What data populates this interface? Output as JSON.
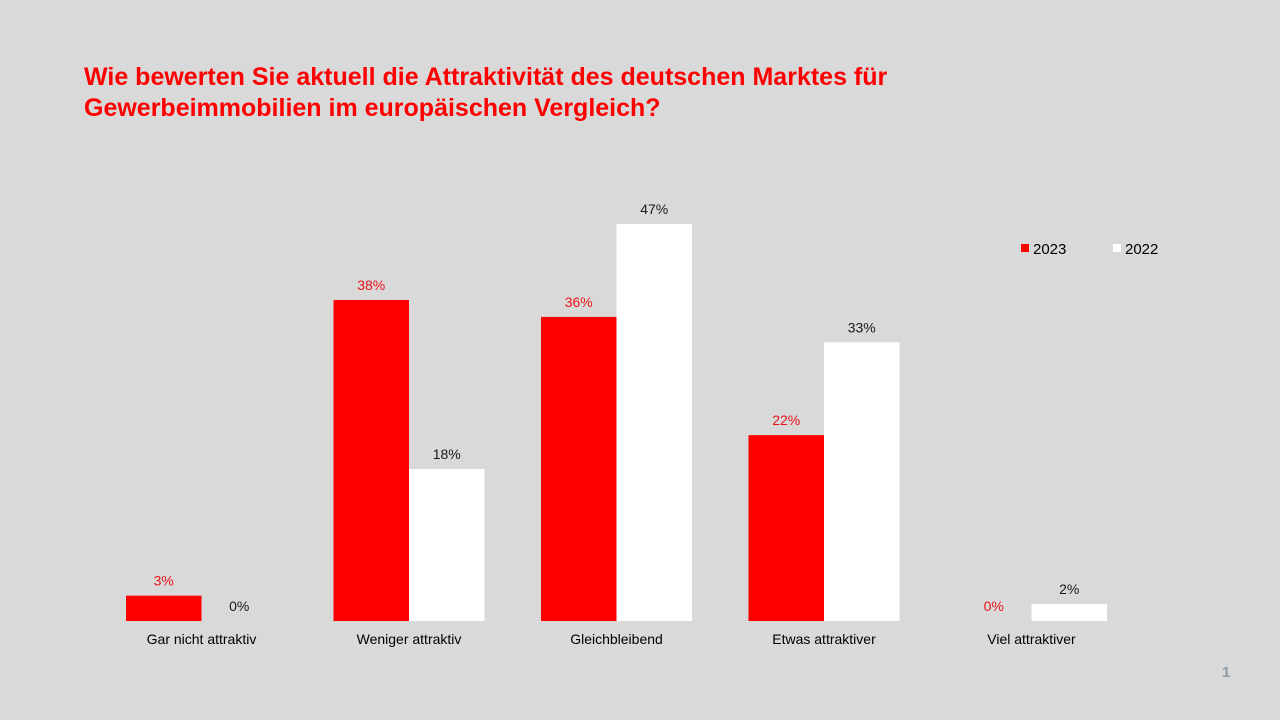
{
  "title_lines": [
    "Wie bewerten Sie aktuell die Attraktivität des deutschen Marktes für",
    "Gewerbeimmobilien im europäischen Vergleich?"
  ],
  "slide_number": "1",
  "colors": {
    "series_2023": "#ff0000",
    "series_2022": "#ffffff",
    "background": "#d9d9d9",
    "label_2023": "#e8141a",
    "label_2022": "#1a1a1a"
  },
  "chart_data": {
    "type": "bar",
    "title": "Wie bewerten Sie aktuell die Attraktivität des deutschen Marktes für Gewerbeimmobilien im europäischen Vergleich?",
    "categories": [
      "Gar nicht attraktiv",
      "Weniger attraktiv",
      "Gleichbleibend",
      "Etwas attraktiver",
      "Viel attraktiver"
    ],
    "series": [
      {
        "name": "2023",
        "values": [
          3,
          38,
          36,
          22,
          0
        ],
        "labels": [
          "3%",
          "38%",
          "36%",
          "22%",
          "0%"
        ]
      },
      {
        "name": "2022",
        "values": [
          0,
          18,
          47,
          33,
          2
        ],
        "labels": [
          "0%",
          "18%",
          "47%",
          "33%",
          "2%"
        ]
      }
    ],
    "ylim": [
      0,
      47
    ],
    "grid": false,
    "legend": "top-right",
    "xlabel": "",
    "ylabel": ""
  }
}
